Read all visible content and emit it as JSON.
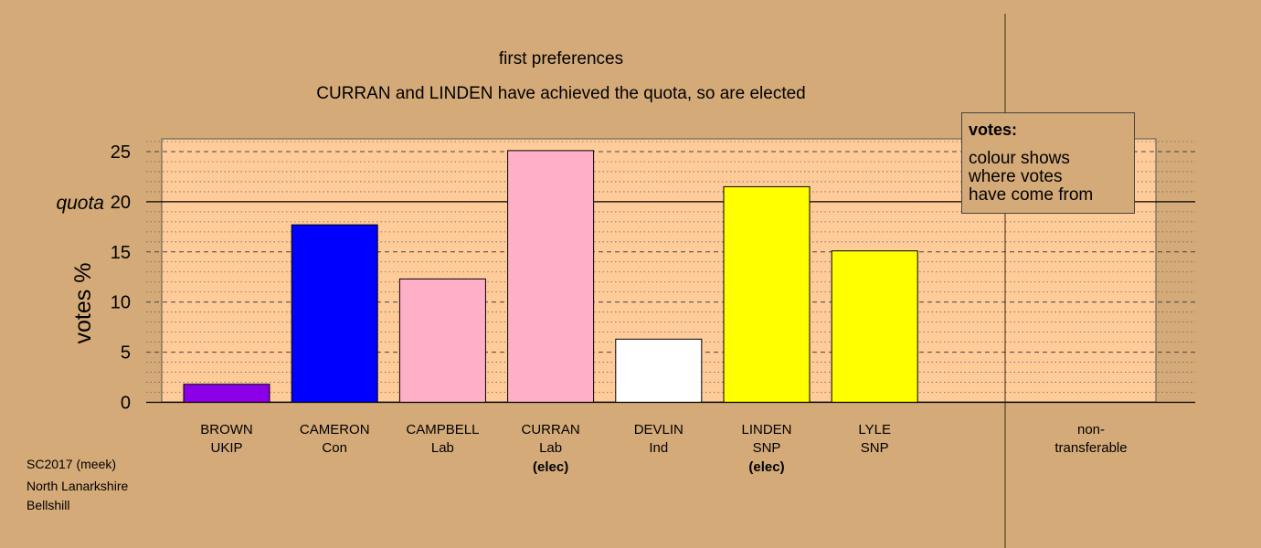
{
  "chart_data": {
    "type": "bar",
    "title": "first preferences",
    "subtitle": "CURRAN and LINDEN have achieved the quota, so are elected",
    "ylabel": "votes %",
    "ylim": [
      0,
      26.3
    ],
    "yticks": [
      0,
      5,
      10,
      15,
      20,
      25
    ],
    "quota": 20,
    "quota_label": "quota",
    "categories": [
      {
        "name": "BROWN",
        "party": "UKIP",
        "note": "",
        "value": 1.8,
        "color": "#8b00e6"
      },
      {
        "name": "CAMERON",
        "party": "Con",
        "note": "",
        "value": 17.7,
        "color": "#0000ff"
      },
      {
        "name": "CAMPBELL",
        "party": "Lab",
        "note": "",
        "value": 12.3,
        "color": "#ffb0c8"
      },
      {
        "name": "CURRAN",
        "party": "Lab",
        "note": "(elec)",
        "value": 25.1,
        "color": "#ffb0c8"
      },
      {
        "name": "DEVLIN",
        "party": "Ind",
        "note": "",
        "value": 6.3,
        "color": "#ffffff"
      },
      {
        "name": "LINDEN",
        "party": "SNP",
        "note": "(elec)",
        "value": 21.5,
        "color": "#ffff00"
      },
      {
        "name": "LYLE",
        "party": "SNP",
        "note": "",
        "value": 15.1,
        "color": "#ffff00"
      }
    ],
    "nontransferable": {
      "line1": "non-",
      "line2": "transferable",
      "value": 0
    },
    "legend": {
      "title": "votes:",
      "lines": [
        "colour shows",
        "where votes",
        "have come from"
      ],
      "position": "top-right"
    },
    "grid": true,
    "colors": {
      "background": "#d4aa78",
      "plot_area": "#ffcc99",
      "grid": "#555555"
    }
  },
  "footer": {
    "lines": [
      "SC2017 (meek)",
      "North Lanarkshire",
      "Bellshill"
    ]
  }
}
